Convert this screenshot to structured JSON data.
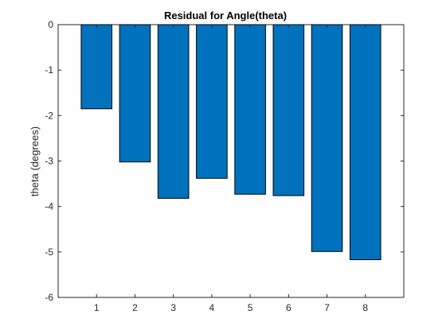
{
  "chart_data": {
    "type": "bar",
    "title": "Residual for Angle(theta)",
    "xlabel": "",
    "ylabel": "theta (degrees)",
    "categories": [
      "1",
      "2",
      "3",
      "4",
      "5",
      "6",
      "7",
      "8"
    ],
    "values": [
      -1.85,
      -3.02,
      -3.82,
      -3.38,
      -3.73,
      -3.76,
      -4.99,
      -5.17
    ],
    "xlim": [
      0,
      9
    ],
    "ylim": [
      -6,
      0
    ],
    "yticks": [
      "0",
      "-1",
      "-2",
      "-3",
      "-4",
      "-5",
      "-6"
    ],
    "grid": false,
    "bar_color": "#0072BD"
  }
}
